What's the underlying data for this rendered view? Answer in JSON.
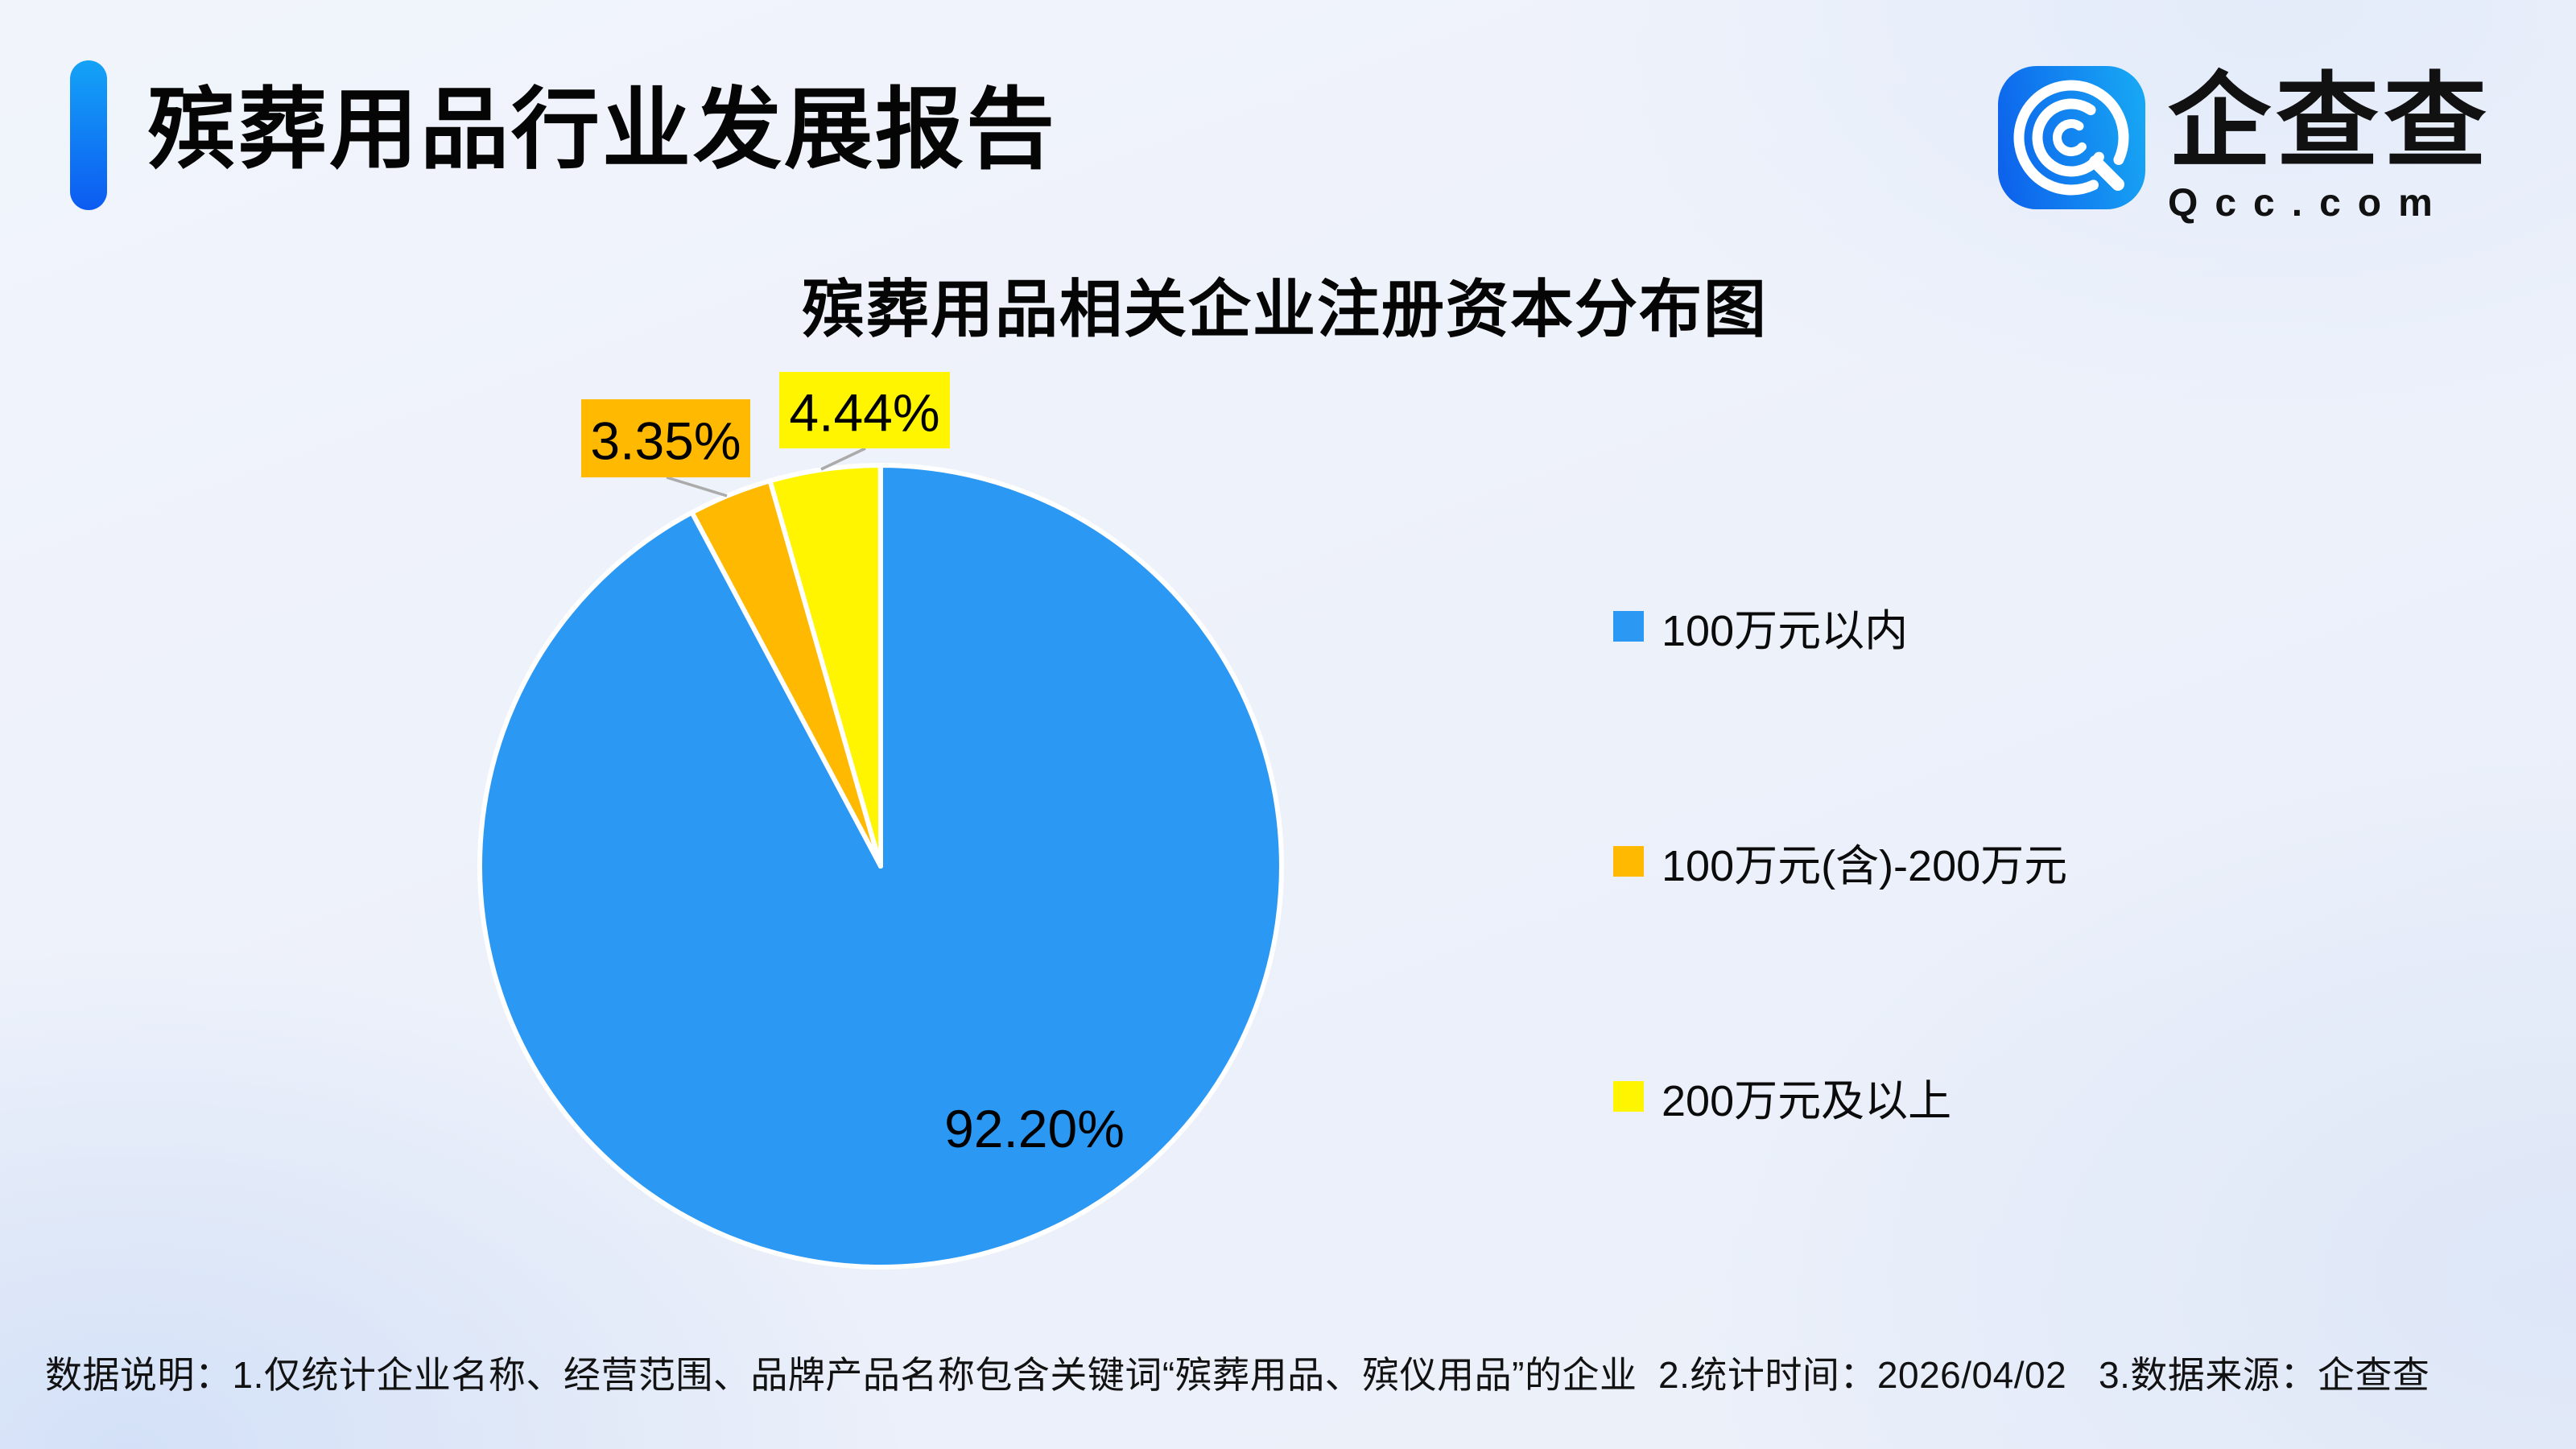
{
  "header": {
    "title": "殡葬用品行业发展报告",
    "logo": {
      "brand_name": "企查查",
      "brand_domain": "Qcc.com",
      "icon": "qcc-magnifier-logo"
    }
  },
  "chart": {
    "title": "殡葬用品相关企业注册资本分布图"
  },
  "chart_data": {
    "type": "pie",
    "title": "殡葬用品相关企业注册资本分布图",
    "categories": [
      "100万元以内",
      "100万元(含)-200万元",
      "200万元及以上"
    ],
    "values": [
      92.2,
      3.35,
      4.44
    ],
    "labels": [
      "92.20%",
      "3.35%",
      "4.44%"
    ],
    "colors": [
      "#2B98F4",
      "#FFB900",
      "#FFF500"
    ],
    "start_angle": "12-oclock",
    "direction": "clockwise",
    "slice_border_color": "#FFFFFF",
    "leader_line_color": "#ABABAB",
    "legend_position": "right"
  },
  "footer": {
    "note": "数据说明：1.仅统计企业名称、经营范围、品牌产品名称包含关键词“殡葬用品、殡仪用品”的企业  2.统计时间：2026/04/02   3.数据来源：企查查"
  },
  "colors": {
    "accent_blue_top": "#14A3F7",
    "accent_blue_bottom": "#0C5BF1",
    "logo_blue_left": "#0D63EC",
    "logo_blue_right": "#17A6F4",
    "background": "#EDF1FA",
    "text": "#0B0B0B"
  }
}
